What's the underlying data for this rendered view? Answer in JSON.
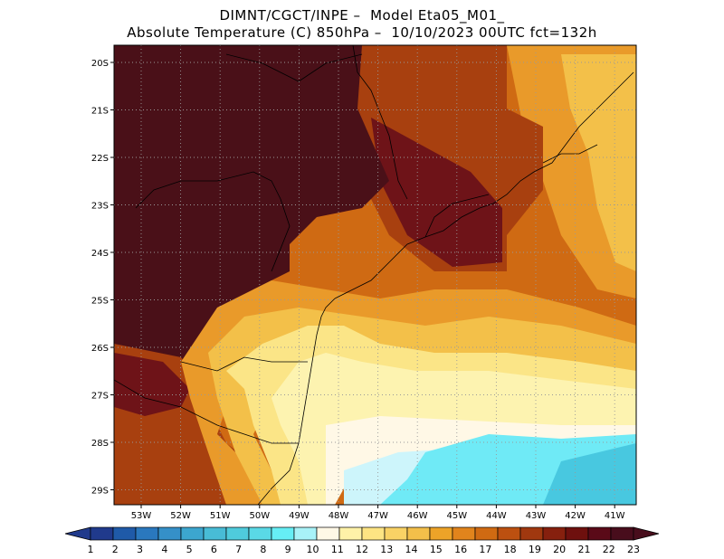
{
  "title": {
    "line1": "DIMNT/CGCT/INPE –  Model Eta05_M01_",
    "line2": "Absolute Temperature (C) 850hPa –  10/10/2023 00UTC fct=132h"
  },
  "map": {
    "lat_labels": [
      "20S",
      "21S",
      "22S",
      "23S",
      "24S",
      "25S",
      "26S",
      "27S",
      "28S",
      "29S"
    ],
    "lon_labels": [
      "53W",
      "52W",
      "51W",
      "50W",
      "49W",
      "48W",
      "47W",
      "46W",
      "45W",
      "44W",
      "43W",
      "42W",
      "41W"
    ]
  },
  "colorbar": {
    "labels": [
      "1",
      "2",
      "3",
      "4",
      "5",
      "6",
      "7",
      "8",
      "9",
      "10",
      "11",
      "12",
      "13",
      "14",
      "15",
      "16",
      "17",
      "18",
      "19",
      "20",
      "21",
      "22",
      "23"
    ],
    "colors": [
      "#203a8c",
      "#1f5aa8",
      "#2a78be",
      "#3590c8",
      "#3ca6cf",
      "#48bcd6",
      "#4fcbdc",
      "#5ad9e6",
      "#66eef5",
      "#a8f2f8",
      "#fff8e6",
      "#fff2a8",
      "#fde483",
      "#f9d265",
      "#f3bf4a",
      "#eda328",
      "#e1841c",
      "#d06a12",
      "#bc5010",
      "#a0380f",
      "#86200e",
      "#6e100e",
      "#5a0a18",
      "#480d1c"
    ]
  },
  "colors": {
    "darkest": "#4a1018",
    "dark_red": "#6e1318",
    "brown": "#a8400f",
    "orange": "#cf6a13",
    "light_orange": "#e99a2a",
    "gold": "#f3c049",
    "yellow": "#fbe587",
    "pale_yellow": "#fdf3b0",
    "cream": "#fff8e6",
    "light_cyan": "#cdf5fb",
    "cyan": "#6feaf6",
    "aqua": "#48c8e0"
  }
}
